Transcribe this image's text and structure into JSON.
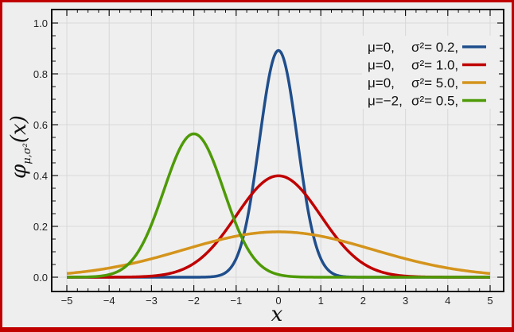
{
  "chart_data": {
    "type": "line",
    "title": "",
    "xlabel": "x",
    "ylabel": "φ_{μ,σ²}(x)",
    "xlim": [
      -5,
      5
    ],
    "ylim": [
      0,
      1.0
    ],
    "grid": true,
    "legend_position": "upper right",
    "x_ticks": [
      "−5",
      "−4",
      "−3",
      "−2",
      "−1",
      "0",
      "1",
      "2",
      "3",
      "4",
      "5"
    ],
    "y_ticks": [
      "0.0",
      "0.2",
      "0.4",
      "0.6",
      "0.8",
      "1.0"
    ],
    "series": [
      {
        "name": "μ=0, σ²=0.2",
        "mu": 0,
        "variance": 0.2,
        "color": "#1f4e8c",
        "peak": 0.892
      },
      {
        "name": "μ=0, σ²=1.0",
        "mu": 0,
        "variance": 1.0,
        "color": "#c00000",
        "peak": 0.399
      },
      {
        "name": "μ=0, σ²=5.0",
        "mu": 0,
        "variance": 5.0,
        "color": "#d4941c",
        "peak": 0.178
      },
      {
        "name": "μ=−2, σ²=0.5",
        "mu": -2,
        "variance": 0.5,
        "color": "#4e9a06",
        "peak": 0.564
      }
    ]
  },
  "legend": [
    {
      "mu": "μ=0,",
      "sigma": "σ²= 0.2,",
      "color": "#1f4e8c"
    },
    {
      "mu": "μ=0,",
      "sigma": "σ²= 1.0,",
      "color": "#c00000"
    },
    {
      "mu": "μ=0,",
      "sigma": "σ²= 5.0,",
      "color": "#d4941c"
    },
    {
      "mu": "μ=−2,",
      "sigma": "σ²= 0.5,",
      "color": "#4e9a06"
    }
  ],
  "axes": {
    "xlabel": "x",
    "ylabel_main": "φ",
    "ylabel_sub": "μ,σ²",
    "ylabel_arg": "(x)"
  }
}
